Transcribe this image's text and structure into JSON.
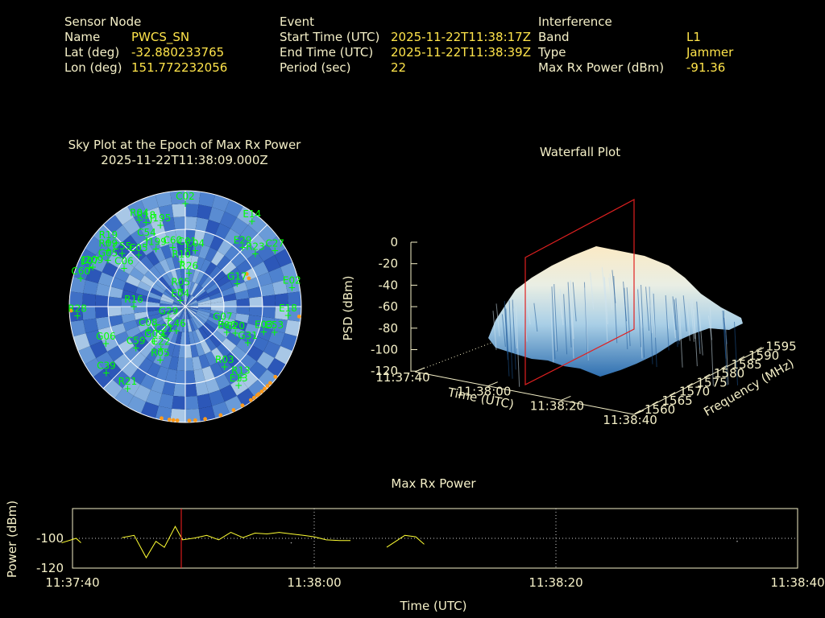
{
  "sensor": {
    "heading": "Sensor Node",
    "name_label": "Name",
    "name": "PWCS_SN",
    "lat_label": "Lat (deg)",
    "lat": "-32.880233765",
    "lon_label": "Lon (deg)",
    "lon": "151.772232056"
  },
  "event": {
    "heading": "Event",
    "start_label": "Start Time (UTC)",
    "start": "2025-11-22T11:38:17Z",
    "end_label": "End Time (UTC)",
    "end": "2025-11-22T11:38:39Z",
    "period_label": "Period (sec)",
    "period": "22"
  },
  "interference": {
    "heading": "Interference",
    "band_label": "Band",
    "band": "L1",
    "type_label": "Type",
    "type": "Jammer",
    "power_label": "Max Rx Power (dBm)",
    "power": "-91.36"
  },
  "skyplot": {
    "title": "Sky Plot at the Epoch of Max Rx Power",
    "epoch": "2025-11-22T11:38:09.000Z",
    "sat_color": "#00ff00",
    "point_color": "#ff9a1a",
    "satellites": [
      {
        "id": "C02",
        "az": 0,
        "el": 10
      },
      {
        "id": "R18",
        "az": 335,
        "el": 18
      },
      {
        "id": "R04",
        "az": 332,
        "el": 14
      },
      {
        "id": "J195",
        "az": 343,
        "el": 24
      },
      {
        "id": "E14",
        "az": 38,
        "el": 6
      },
      {
        "id": "R19",
        "az": 310,
        "el": 12
      },
      {
        "id": "R09",
        "az": 306,
        "el": 16
      },
      {
        "id": "C54",
        "az": 330,
        "el": 30
      },
      {
        "id": "C27",
        "az": 58,
        "el": 8
      },
      {
        "id": "E07",
        "az": 292,
        "el": 10
      },
      {
        "id": "G05",
        "az": 301,
        "el": 20
      },
      {
        "id": "E05",
        "az": 318,
        "el": 36
      },
      {
        "id": "J199",
        "az": 333,
        "el": 40
      },
      {
        "id": "C60",
        "az": 348,
        "el": 43
      },
      {
        "id": "C01",
        "az": 2,
        "el": 45
      },
      {
        "id": "C04",
        "az": 10,
        "el": 46
      },
      {
        "id": "E29",
        "az": 44,
        "el": 26
      },
      {
        "id": "R23",
        "az": 53,
        "el": 22
      },
      {
        "id": "C60",
        "az": 285,
        "el": 6
      },
      {
        "id": "J209",
        "az": 293,
        "el": 12
      },
      {
        "id": "C55",
        "az": 310,
        "el": 26
      },
      {
        "id": "C06",
        "az": 302,
        "el": 34
      },
      {
        "id": "R10",
        "az": 355,
        "el": 55
      },
      {
        "id": "R26",
        "az": 6,
        "el": 64
      },
      {
        "id": "E02",
        "az": 80,
        "el": 6
      },
      {
        "id": "G17",
        "az": 66,
        "el": 46
      },
      {
        "id": "R05",
        "az": 345,
        "el": 76
      },
      {
        "id": "E04",
        "az": 320,
        "el": 84
      },
      {
        "id": "R28",
        "az": 265,
        "el": 6
      },
      {
        "id": "R16",
        "az": 270,
        "el": 50
      },
      {
        "id": "E18",
        "az": 95,
        "el": 10
      },
      {
        "id": "G07",
        "az": 115,
        "el": 58
      },
      {
        "id": "E06",
        "az": 122,
        "el": 52
      },
      {
        "id": "C20",
        "az": 118,
        "el": 46
      },
      {
        "id": "G29",
        "az": 235,
        "el": 74
      },
      {
        "id": "C08",
        "az": 238,
        "el": 56
      },
      {
        "id": "G06",
        "az": 245,
        "el": 22
      },
      {
        "id": "C59",
        "az": 230,
        "el": 40
      },
      {
        "id": "G09",
        "az": 222,
        "el": 54
      },
      {
        "id": "C21",
        "az": 216,
        "el": 62
      },
      {
        "id": "E03",
        "az": 108,
        "el": 26
      },
      {
        "id": "G31",
        "az": 120,
        "el": 34
      },
      {
        "id": "R03",
        "az": 147,
        "el": 34
      },
      {
        "id": "C22",
        "az": 210,
        "el": 52
      },
      {
        "id": "R05",
        "az": 205,
        "el": 44
      },
      {
        "id": "E53",
        "az": 106,
        "el": 18
      },
      {
        "id": "C39",
        "az": 230,
        "el": 10
      },
      {
        "id": "R21",
        "az": 215,
        "el": 12
      },
      {
        "id": "E13",
        "az": 146,
        "el": 16
      },
      {
        "id": "R13",
        "az": 142,
        "el": 20
      },
      {
        "id": "C46",
        "az": 200,
        "el": 70
      }
    ]
  },
  "waterfall": {
    "title": "Waterfall Plot",
    "zlabel": "PSD (dBm)",
    "xlabel": "Time (UTC)",
    "ylabel": "Frequency (MHz)",
    "zticks": [
      "0",
      "-20",
      "-40",
      "-60",
      "-80",
      "-100",
      "-120"
    ],
    "xticks": [
      "11:37:40",
      "11:38:00",
      "11:38:20",
      "11:38:40"
    ],
    "yticks": [
      "1560",
      "1565",
      "1570",
      "1575",
      "1580",
      "1585",
      "1590",
      "1595"
    ]
  },
  "chart_data": {
    "type": "line",
    "title": "Max Rx Power",
    "xlabel": "Time (UTC)",
    "ylabel": "Power (dBm)",
    "xticks": [
      "11:37:40",
      "11:38:00",
      "11:38:20",
      "11:38:40"
    ],
    "xlim_sec": [
      0,
      60
    ],
    "yticks": [
      -100,
      -120
    ],
    "ylim": [
      -120,
      -80
    ],
    "marker_sec": 9,
    "line_color": "#ffff33",
    "marker_color": "#ff2020",
    "series": [
      {
        "name": "",
        "x": [
          -0.9,
          0.3,
          0.7
        ],
        "y": [
          -103,
          -100,
          -103
        ]
      },
      {
        "x": [
          4.1,
          5.1,
          6.1,
          6.9,
          7.6,
          8.5,
          9.1,
          10.1,
          11.1,
          12.1,
          13.1,
          14.1,
          15.1,
          16.1,
          17.1,
          18.1,
          19.1,
          20.0,
          21.0,
          22.1,
          23.0
        ],
        "y": [
          -99.5,
          -98,
          -113,
          -102,
          -106,
          -92,
          -101,
          -99.8,
          -98,
          -101,
          -96,
          -99.5,
          -96.5,
          -97,
          -96,
          -97,
          -98,
          -99,
          -101,
          -101.5,
          -101.5
        ]
      },
      {
        "x": [
          26,
          27.5,
          28.4,
          29.1
        ],
        "y": [
          -106,
          -98,
          -99,
          -104
        ]
      }
    ]
  }
}
